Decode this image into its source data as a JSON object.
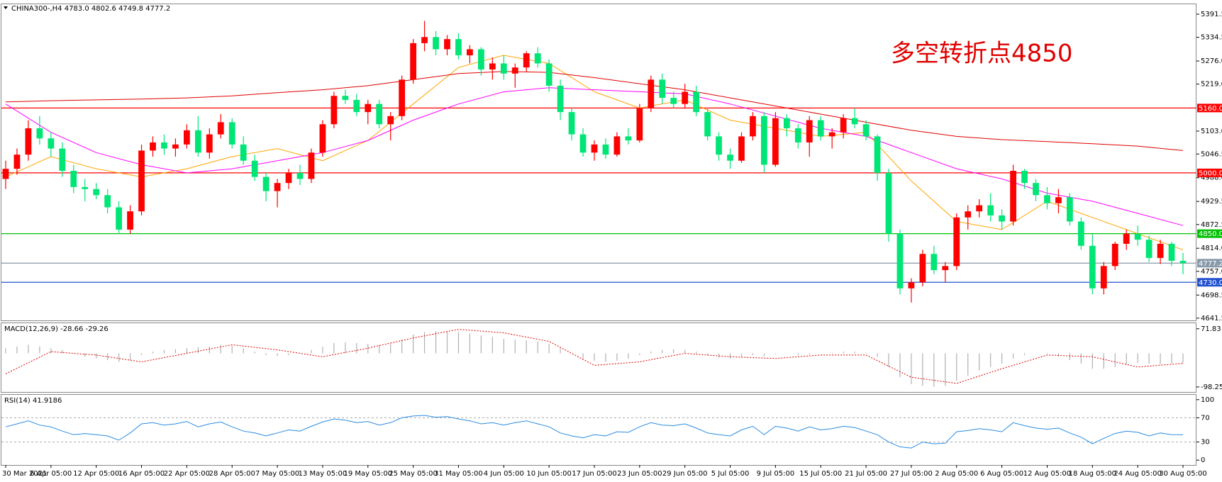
{
  "chart_data": [
    {
      "type": "candlestick",
      "title": "CHINA300-,H4 4783.0 4802.6 4749.8 4777.2",
      "annotation": "多空转折点4850",
      "annotation_color": "#e00000",
      "categories": [
        "30 Mar 2021",
        null,
        null,
        null,
        "6 Apr 05:00",
        null,
        null,
        null,
        "12 Apr 05:00",
        null,
        null,
        null,
        "16 Apr 05:00",
        null,
        null,
        null,
        "22 Apr 05:00",
        null,
        null,
        null,
        "28 Apr 05:00",
        null,
        null,
        null,
        "7 May 05:00",
        null,
        null,
        null,
        "13 May 05:00",
        null,
        null,
        null,
        "19 May 05:00",
        null,
        null,
        null,
        "25 May 05:00",
        null,
        null,
        null,
        "31 May 05:00",
        null,
        null,
        null,
        "4 Jun 05:00",
        null,
        null,
        null,
        "10 Jun 05:00",
        null,
        null,
        null,
        "17 Jun 05:00",
        null,
        null,
        null,
        "23 Jun 05:00",
        null,
        null,
        null,
        "29 Jun 05:00",
        null,
        null,
        null,
        "5 Jul 05:00",
        null,
        null,
        null,
        "9 Jul 05:00",
        null,
        null,
        null,
        "15 Jul 05:00",
        null,
        null,
        null,
        "21 Jul 05:00",
        null,
        null,
        null,
        "27 Jul 05:00",
        null,
        null,
        null,
        "2 Aug 05:00",
        null,
        null,
        null,
        "6 Aug 05:00",
        null,
        null,
        null,
        "12 Aug 05:00",
        null,
        null,
        null,
        "18 Aug 05:00",
        null,
        null,
        null,
        "24 Aug 05:00",
        null,
        null,
        null,
        "30 Aug 05:00"
      ],
      "ohlc": [
        [
          4985,
          5030,
          4960,
          5010
        ],
        [
          5010,
          5060,
          4995,
          5045
        ],
        [
          5045,
          5130,
          5030,
          5110
        ],
        [
          5110,
          5140,
          5070,
          5085
        ],
        [
          5085,
          5100,
          5040,
          5060
        ],
        [
          5060,
          5075,
          4990,
          5005
        ],
        [
          5005,
          5020,
          4950,
          4965
        ],
        [
          4965,
          4985,
          4930,
          4960
        ],
        [
          4960,
          4975,
          4935,
          4945
        ],
        [
          4945,
          4960,
          4900,
          4915
        ],
        [
          4915,
          4930,
          4850,
          4860
        ],
        [
          4860,
          4920,
          4850,
          4905
        ],
        [
          4905,
          5070,
          4895,
          5055
        ],
        [
          5055,
          5090,
          5040,
          5075
        ],
        [
          5075,
          5095,
          5045,
          5060
        ],
        [
          5060,
          5085,
          5040,
          5070
        ],
        [
          5070,
          5120,
          5060,
          5105
        ],
        [
          5105,
          5140,
          5040,
          5050
        ],
        [
          5050,
          5110,
          5035,
          5095
        ],
        [
          5095,
          5145,
          5085,
          5125
        ],
        [
          5125,
          5135,
          5060,
          5070
        ],
        [
          5070,
          5090,
          5020,
          5030
        ],
        [
          5030,
          5045,
          4980,
          4990
        ],
        [
          4990,
          5000,
          4930,
          4955
        ],
        [
          4955,
          4985,
          4915,
          4975
        ],
        [
          4975,
          5010,
          4960,
          5000
        ],
        [
          5000,
          5020,
          4970,
          4985
        ],
        [
          4985,
          5060,
          4975,
          5050
        ],
        [
          5050,
          5130,
          5040,
          5120
        ],
        [
          5120,
          5200,
          5110,
          5190
        ],
        [
          5190,
          5205,
          5170,
          5180
        ],
        [
          5180,
          5195,
          5140,
          5150
        ],
        [
          5150,
          5180,
          5120,
          5170
        ],
        [
          5170,
          5180,
          5110,
          5120
        ],
        [
          5120,
          5150,
          5080,
          5140
        ],
        [
          5140,
          5240,
          5130,
          5230
        ],
        [
          5230,
          5330,
          5220,
          5320
        ],
        [
          5320,
          5375,
          5300,
          5335
        ],
        [
          5335,
          5350,
          5290,
          5305
        ],
        [
          5305,
          5340,
          5290,
          5330
        ],
        [
          5330,
          5345,
          5280,
          5290
        ],
        [
          5290,
          5315,
          5270,
          5305
        ],
        [
          5305,
          5310,
          5240,
          5255
        ],
        [
          5255,
          5285,
          5230,
          5270
        ],
        [
          5270,
          5290,
          5230,
          5245
        ],
        [
          5245,
          5270,
          5210,
          5260
        ],
        [
          5260,
          5300,
          5250,
          5295
        ],
        [
          5295,
          5310,
          5260,
          5270
        ],
        [
          5270,
          5280,
          5200,
          5215
        ],
        [
          5215,
          5230,
          5130,
          5150
        ],
        [
          5150,
          5160,
          5080,
          5095
        ],
        [
          5095,
          5110,
          5040,
          5050
        ],
        [
          5050,
          5080,
          5030,
          5070
        ],
        [
          5070,
          5085,
          5035,
          5045
        ],
        [
          5045,
          5100,
          5040,
          5090
        ],
        [
          5090,
          5110,
          5070,
          5080
        ],
        [
          5080,
          5170,
          5075,
          5160
        ],
        [
          5160,
          5240,
          5150,
          5230
        ],
        [
          5230,
          5245,
          5170,
          5185
        ],
        [
          5185,
          5200,
          5160,
          5170
        ],
        [
          5170,
          5220,
          5160,
          5200
        ],
        [
          5200,
          5215,
          5140,
          5150
        ],
        [
          5150,
          5160,
          5080,
          5090
        ],
        [
          5090,
          5100,
          5030,
          5045
        ],
        [
          5045,
          5060,
          5010,
          5030
        ],
        [
          5030,
          5100,
          5025,
          5090
        ],
        [
          5090,
          5150,
          5080,
          5140
        ],
        [
          5140,
          5150,
          5000,
          5020
        ],
        [
          5020,
          5150,
          5015,
          5135
        ],
        [
          5135,
          5145,
          5090,
          5110
        ],
        [
          5110,
          5120,
          5060,
          5075
        ],
        [
          5075,
          5140,
          5040,
          5130
        ],
        [
          5130,
          5140,
          5080,
          5090
        ],
        [
          5090,
          5110,
          5060,
          5100
        ],
        [
          5100,
          5145,
          5085,
          5135
        ],
        [
          5135,
          5160,
          5110,
          5120
        ],
        [
          5120,
          5130,
          5080,
          5090
        ],
        [
          5090,
          5095,
          4980,
          5000
        ],
        [
          5000,
          5010,
          4830,
          4850
        ],
        [
          4850,
          4860,
          4700,
          4715
        ],
        [
          4715,
          4740,
          4680,
          4730
        ],
        [
          4730,
          4810,
          4720,
          4800
        ],
        [
          4800,
          4820,
          4750,
          4760
        ],
        [
          4760,
          4780,
          4730,
          4770
        ],
        [
          4770,
          4900,
          4760,
          4890
        ],
        [
          4890,
          4920,
          4860,
          4905
        ],
        [
          4905,
          4935,
          4890,
          4920
        ],
        [
          4920,
          4950,
          4880,
          4895
        ],
        [
          4895,
          4910,
          4860,
          4880
        ],
        [
          4880,
          5020,
          4870,
          5005
        ],
        [
          5005,
          5010,
          4960,
          4975
        ],
        [
          4975,
          4985,
          4930,
          4945
        ],
        [
          4945,
          4965,
          4910,
          4925
        ],
        [
          4925,
          4960,
          4900,
          4940
        ],
        [
          4940,
          4950,
          4870,
          4880
        ],
        [
          4880,
          4890,
          4810,
          4820
        ],
        [
          4820,
          4850,
          4700,
          4715
        ],
        [
          4715,
          4780,
          4700,
          4770
        ],
        [
          4770,
          4830,
          4760,
          4825
        ],
        [
          4825,
          4860,
          4810,
          4850
        ],
        [
          4850,
          4870,
          4820,
          4835
        ],
        [
          4835,
          4845,
          4780,
          4790
        ],
        [
          4790,
          4835,
          4775,
          4825
        ],
        [
          4825,
          4830,
          4770,
          4783
        ],
        [
          4783,
          4802.6,
          4749.8,
          4777.2
        ]
      ],
      "up_color": "#ff0000",
      "down_color": "#00e676",
      "series": [
        {
          "color": "#ffa500",
          "x": [
            0,
            4,
            8,
            12,
            16,
            20,
            24,
            28,
            32,
            36,
            40,
            44,
            48,
            52,
            56,
            60,
            64,
            68,
            72,
            76,
            80,
            84,
            88,
            92,
            96,
            100,
            104
          ],
          "values": [
            4990,
            5040,
            5010,
            4990,
            5010,
            5040,
            5060,
            5030,
            5080,
            5170,
            5260,
            5290,
            5270,
            5200,
            5160,
            5180,
            5130,
            5110,
            5090,
            5100,
            4980,
            4880,
            4860,
            4930,
            4890,
            4850,
            4810
          ]
        },
        {
          "color": "#ff00ff",
          "x": [
            0,
            4,
            8,
            12,
            16,
            20,
            24,
            28,
            32,
            36,
            40,
            44,
            48,
            52,
            56,
            60,
            64,
            68,
            72,
            76,
            80,
            84,
            88,
            92,
            96,
            100,
            104
          ],
          "values": [
            5170,
            5100,
            5050,
            5020,
            5000,
            5010,
            5030,
            5050,
            5080,
            5130,
            5170,
            5200,
            5210,
            5205,
            5200,
            5195,
            5170,
            5140,
            5110,
            5090,
            5050,
            5010,
            4985,
            4950,
            4930,
            4900,
            4870
          ]
        },
        {
          "color": "#e00000",
          "x": [
            0,
            4,
            8,
            12,
            16,
            20,
            24,
            28,
            32,
            36,
            40,
            44,
            48,
            52,
            56,
            60,
            64,
            68,
            72,
            76,
            80,
            84,
            88,
            92,
            96,
            100,
            104
          ],
          "values": [
            5175,
            5178,
            5180,
            5182,
            5185,
            5190,
            5198,
            5205,
            5215,
            5230,
            5245,
            5250,
            5248,
            5235,
            5220,
            5205,
            5185,
            5165,
            5145,
            5125,
            5105,
            5090,
            5082,
            5077,
            5072,
            5066,
            5055
          ]
        }
      ],
      "levels": [
        {
          "value": 5160,
          "label": "5160.0",
          "color": "#ff0000"
        },
        {
          "value": 5000,
          "label": "5000.0",
          "color": "#ff0000"
        },
        {
          "value": 4850,
          "label": "4850.0",
          "color": "#00c000"
        },
        {
          "value": 4777.2,
          "label": "4777.2",
          "color": "#8899aa"
        },
        {
          "value": 4730,
          "label": "4730.0",
          "color": "#2050d0"
        }
      ],
      "ylim": [
        4636,
        5416
      ],
      "yticks": [
        5391.5,
        5334.5,
        {
          "value": 5276,
          "label": "5276.0"
        },
        {
          "value": 5219,
          "label": "5219.0"
        },
        {
          "value": 5103,
          "label": "5103.0"
        },
        5046.5,
        {
          "value": 4988,
          "label": "4988.0"
        },
        4929.5,
        4872.5,
        {
          "value": 4814,
          "label": "4814.0"
        },
        {
          "value": 4757,
          "label": "4757.0"
        },
        4698.5,
        4641.5
      ]
    },
    {
      "type": "macd",
      "title": "MACD(12,26,9) -28.66 -29.26",
      "ylim": [
        -113,
        88
      ],
      "yticks": [
        71.83,
        -98.25
      ],
      "histogram_color": "#b0b0b0",
      "values": [
        15,
        20,
        25,
        20,
        15,
        10,
        0,
        -10,
        -15,
        -20,
        -25,
        -20,
        -5,
        5,
        10,
        12,
        15,
        18,
        20,
        25,
        22,
        15,
        5,
        -5,
        -8,
        -5,
        0,
        10,
        20,
        30,
        32,
        30,
        28,
        25,
        28,
        40,
        55,
        62,
        65,
        64,
        62,
        58,
        52,
        48,
        42,
        40,
        38,
        35,
        28,
        15,
        0,
        -15,
        -22,
        -25,
        -22,
        -15,
        -5,
        5,
        10,
        12,
        10,
        5,
        -5,
        -12,
        -15,
        -10,
        -5,
        -8,
        -2,
        0,
        -5,
        -3,
        0,
        2,
        5,
        5,
        2,
        -10,
        -40,
        -70,
        -90,
        -95,
        -98,
        -95,
        -80,
        -65,
        -50,
        -40,
        -30,
        -15,
        -5,
        0,
        -2,
        -10,
        -20,
        -30,
        -45,
        -45,
        -40,
        -32,
        -28,
        -30,
        -32,
        -30,
        -28.66
      ],
      "signal": {
        "color": "#e00000",
        "x": [
          0,
          4,
          8,
          12,
          16,
          20,
          24,
          28,
          32,
          36,
          40,
          44,
          48,
          52,
          56,
          60,
          64,
          68,
          72,
          76,
          80,
          84,
          88,
          92,
          96,
          100,
          104
        ],
        "values": [
          -60,
          5,
          -5,
          -25,
          0,
          25,
          10,
          -10,
          15,
          45,
          70,
          60,
          35,
          -35,
          -25,
          0,
          -10,
          -15,
          -5,
          -5,
          -70,
          -88,
          -45,
          -5,
          -10,
          -40,
          -29.26
        ]
      }
    },
    {
      "type": "line",
      "title": "RSI(14) 41.9186",
      "color": "#2a8be0",
      "ylim": [
        -8,
        108
      ],
      "yticks": [
        100,
        70,
        30,
        0
      ],
      "levels": [
        70,
        30
      ],
      "values": [
        55,
        60,
        65,
        58,
        55,
        48,
        42,
        44,
        42,
        40,
        33,
        45,
        60,
        62,
        58,
        60,
        64,
        55,
        60,
        63,
        55,
        48,
        45,
        40,
        45,
        50,
        48,
        56,
        63,
        68,
        66,
        62,
        64,
        58,
        62,
        70,
        73,
        74,
        71,
        72,
        68,
        65,
        60,
        62,
        58,
        62,
        65,
        60,
        55,
        45,
        40,
        37,
        42,
        40,
        47,
        46,
        55,
        62,
        58,
        57,
        60,
        53,
        45,
        42,
        40,
        50,
        56,
        42,
        56,
        53,
        48,
        55,
        50,
        52,
        56,
        54,
        48,
        42,
        30,
        22,
        20,
        30,
        27,
        28,
        47,
        49,
        52,
        50,
        47,
        62,
        57,
        53,
        51,
        53,
        45,
        38,
        27,
        36,
        44,
        48,
        46,
        40,
        45,
        42,
        41.9186
      ]
    }
  ]
}
